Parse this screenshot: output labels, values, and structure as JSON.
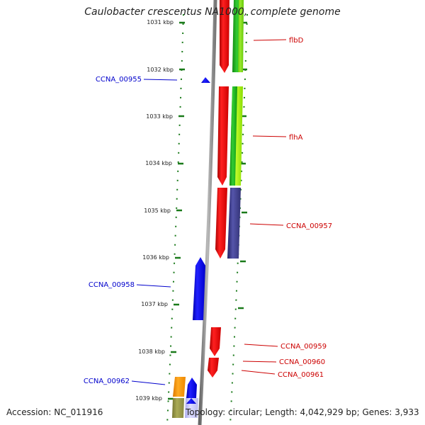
{
  "title": "Caulobacter crescentus NA1000, complete genome",
  "footer": {
    "accession": "Accession: NC_011916",
    "summary": "Topology: circular; Length: 4,042,929 bp; Genes: 3,933"
  },
  "colors": {
    "forward_gene": "#ff0000",
    "reverse_gene": "#0000ff",
    "label_forward": "#cc0000",
    "label_reverse": "#0000cc",
    "backbone": "#888888",
    "tick": "#1a7a1a",
    "cog_green": "#22aa22",
    "cog_lime": "#99ee00",
    "cog_navy": "#333388",
    "cog_orange": "#ff9900",
    "cog_olive": "#999944",
    "cog_lavender": "#ccccff"
  },
  "ticks": [
    "1031 kbp",
    "1032 kbp",
    "1033 kbp",
    "1034 kbp",
    "1035 kbp",
    "1036 kbp",
    "1037 kbp",
    "1038 kbp",
    "1039 kbp"
  ],
  "labels": {
    "flbD": "flbD",
    "flhA": "flhA",
    "ccna00955": "CCNA_00955",
    "ccna00957": "CCNA_00957",
    "ccna00958": "CCNA_00958",
    "ccna00959": "CCNA_00959",
    "ccna00960": "CCNA_00960",
    "ccna00961": "CCNA_00961",
    "ccna00962": "CCNA_00962"
  }
}
